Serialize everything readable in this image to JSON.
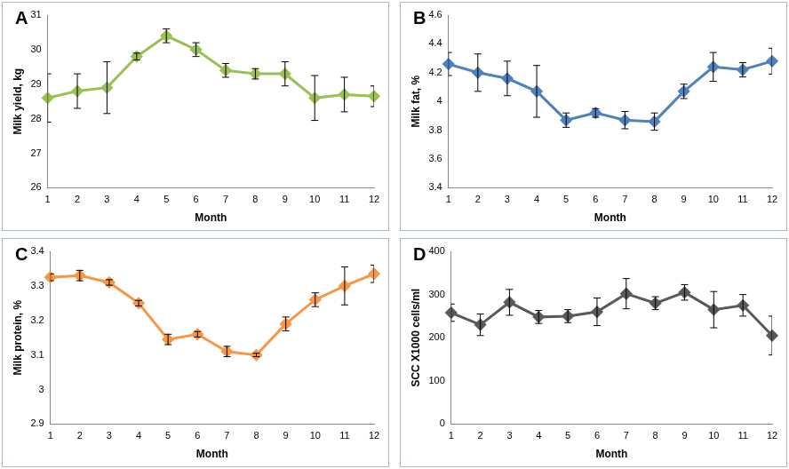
{
  "chart_data": [
    {
      "type": "line",
      "title": "A",
      "x_label": "Month",
      "y_label": "Milk yield, kg",
      "categories": [
        "1",
        "2",
        "3",
        "4",
        "5",
        "6",
        "7",
        "8",
        "9",
        "10",
        "11",
        "12"
      ],
      "values": [
        28.6,
        28.8,
        28.9,
        29.8,
        30.4,
        30.0,
        29.4,
        29.3,
        29.3,
        28.6,
        28.7,
        28.65
      ],
      "errors": [
        0.7,
        0.5,
        0.75,
        0.1,
        0.2,
        0.2,
        0.2,
        0.15,
        0.35,
        0.65,
        0.5,
        0.3
      ],
      "color": "#9bc053",
      "marker": "diamond",
      "ylim": [
        26,
        31
      ],
      "yticks": [
        26,
        27,
        28,
        29,
        30,
        31
      ],
      "grid": false
    },
    {
      "type": "line",
      "title": "B",
      "x_label": "Month",
      "y_label": "Milk fat, %",
      "categories": [
        "1",
        "2",
        "3",
        "4",
        "5",
        "6",
        "7",
        "8",
        "9",
        "10",
        "11",
        "12"
      ],
      "values": [
        4.26,
        4.2,
        4.16,
        4.07,
        3.87,
        3.92,
        3.87,
        3.86,
        4.07,
        4.24,
        4.22,
        4.28
      ],
      "errors": [
        0.08,
        0.13,
        0.12,
        0.18,
        0.05,
        0.03,
        0.06,
        0.06,
        0.05,
        0.1,
        0.05,
        0.09
      ],
      "color": "#4f81bd",
      "marker": "diamond",
      "ylim": [
        3.4,
        4.6
      ],
      "yticks": [
        3.4,
        3.6,
        3.8,
        4,
        4.2,
        4.4,
        4.6
      ],
      "grid": false
    },
    {
      "type": "line",
      "title": "C",
      "x_label": "Month",
      "y_label": "Milk protein, %",
      "categories": [
        "1",
        "2",
        "3",
        "4",
        "5",
        "6",
        "7",
        "8",
        "9",
        "10",
        "11",
        "12"
      ],
      "values": [
        3.325,
        3.33,
        3.31,
        3.25,
        3.145,
        3.16,
        3.11,
        3.1,
        3.19,
        3.26,
        3.3,
        3.335
      ],
      "errors": [
        0.01,
        0.015,
        0.008,
        0.008,
        0.015,
        0.008,
        0.015,
        0.005,
        0.02,
        0.02,
        0.055,
        0.025
      ],
      "color": "#f79646",
      "marker": "diamond",
      "ylim": [
        2.9,
        3.4
      ],
      "yticks": [
        2.9,
        3,
        3.1,
        3.2,
        3.3,
        3.4
      ],
      "grid": false
    },
    {
      "type": "line",
      "title": "D",
      "x_label": "Month",
      "y_label": "SCC X1000 cells/ml",
      "categories": [
        "1",
        "2",
        "3",
        "4",
        "5",
        "6",
        "7",
        "8",
        "9",
        "10",
        "11",
        "12"
      ],
      "values": [
        258,
        230,
        282,
        248,
        250,
        260,
        302,
        280,
        305,
        265,
        275,
        205
      ],
      "errors": [
        20,
        25,
        30,
        15,
        15,
        32,
        35,
        15,
        18,
        42,
        25,
        45
      ],
      "color": "#595959",
      "marker": "diamond",
      "ylim": [
        0,
        400
      ],
      "yticks": [
        0,
        100,
        200,
        300,
        400
      ],
      "grid": false
    }
  ]
}
